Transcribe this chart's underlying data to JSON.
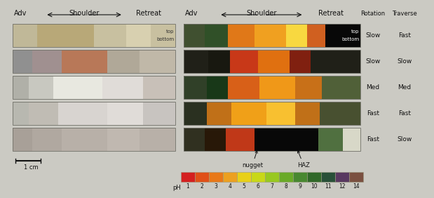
{
  "bg_color": "#cbcac3",
  "rotation_labels": [
    "Slow",
    "Slow",
    "Med",
    "Fast",
    "Fast"
  ],
  "traverse_labels": [
    "Fast",
    "Slow",
    "Med",
    "Fast",
    "Slow"
  ],
  "pH_colors": [
    "#d42020",
    "#e05018",
    "#e87818",
    "#eca020",
    "#e8d018",
    "#c8d818",
    "#98c820",
    "#6aaa28",
    "#488830",
    "#306828",
    "#285038",
    "#583860",
    "#7a5040"
  ],
  "pH_labels": [
    "1",
    "2",
    "3",
    "4",
    "5",
    "6",
    "7",
    "8",
    "9",
    "10",
    "11",
    "12",
    "14"
  ],
  "scale_bar_label": "1 cm",
  "font_color": "#111111"
}
